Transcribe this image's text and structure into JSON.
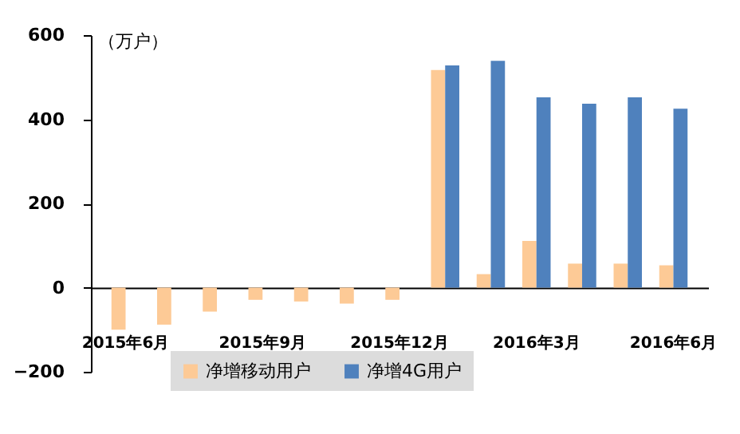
{
  "chart_data": {
    "type": "bar",
    "ylabel": "（万户）",
    "categories": [
      "2015年6月",
      null,
      null,
      "2015年9月",
      null,
      null,
      "2015年12月",
      null,
      null,
      "2016年3月",
      null,
      null,
      "2016年6月"
    ],
    "series": [
      {
        "name": "净增移动用户",
        "color": "#fdca96",
        "values": [
          -100,
          -88,
          -57,
          -29,
          -33,
          -38,
          -29,
          517,
          32,
          111,
          57,
          57,
          53
        ]
      },
      {
        "name": "净增4G用户",
        "color": "#4f81bd",
        "values": [
          null,
          null,
          null,
          null,
          null,
          null,
          null,
          528,
          539,
          452,
          437,
          452,
          425
        ]
      }
    ],
    "ylim": [
      -200,
      600
    ],
    "yticks": [
      -200,
      0,
      200,
      400,
      600
    ],
    "legend": "bottom"
  }
}
